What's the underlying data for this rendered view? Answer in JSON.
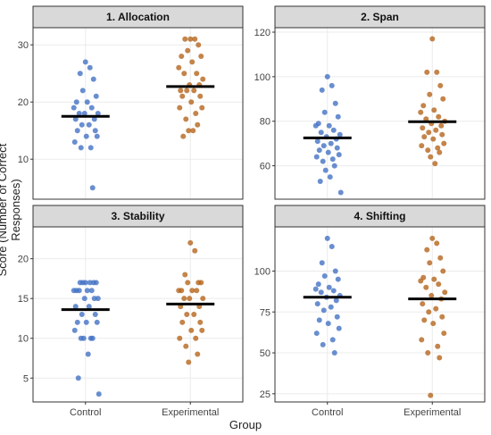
{
  "chart_data": {
    "type": "scatter",
    "ylabel": "Score (Number of Correct Responses)",
    "xlabel": "Group",
    "categories": [
      "Control",
      "Experimental"
    ],
    "colors": {
      "Control": "#4472c4",
      "Experimental": "#b5651d",
      "mean_line": "#000000",
      "strip_bg": "#d9d9d9",
      "grid": "#ebebeb"
    },
    "panels": [
      {
        "title": "1. Allocation",
        "ylim": [
          3,
          33
        ],
        "yticks": [
          10,
          20,
          30
        ],
        "means": {
          "Control": 17.5,
          "Experimental": 22.7
        },
        "series": [
          {
            "name": "Control",
            "values": [
              27,
              26,
              25,
              24,
              22,
              21,
              20,
              20,
              19,
              19,
              18,
              18,
              18,
              17,
              17,
              16,
              16,
              15,
              15,
              14,
              14,
              13,
              12,
              12,
              5
            ]
          },
          {
            "name": "Experimental",
            "values": [
              31,
              31,
              31,
              30,
              29,
              28,
              28,
              27,
              26,
              25,
              25,
              24,
              23,
              23,
              22,
              22,
              22,
              21,
              21,
              20,
              19,
              19,
              18,
              17,
              16,
              15,
              15,
              14
            ]
          }
        ]
      },
      {
        "title": "2. Span",
        "ylim": [
          45,
          122
        ],
        "yticks": [
          60,
          80,
          100,
          120
        ],
        "means": {
          "Control": 72.5,
          "Experimental": 79.8
        },
        "series": [
          {
            "name": "Control",
            "values": [
              100,
              96,
              94,
              88,
              84,
              82,
              79,
              78,
              78,
              76,
              75,
              74,
              73,
              72,
              71,
              70,
              69,
              68,
              67,
              66,
              65,
              64,
              63,
              62,
              60,
              58,
              55,
              53,
              48
            ]
          },
          {
            "name": "Experimental",
            "values": [
              117,
              102,
              102,
              96,
              92,
              90,
              87,
              85,
              84,
              82,
              81,
              80,
              79,
              78,
              77,
              76,
              75,
              74,
              73,
              72,
              70,
              69,
              68,
              67,
              66,
              64,
              61
            ]
          }
        ]
      },
      {
        "title": "3. Stability",
        "ylim": [
          2,
          24
        ],
        "yticks": [
          5,
          10,
          15,
          20
        ],
        "means": {
          "Control": 13.6,
          "Experimental": 14.3
        },
        "series": [
          {
            "name": "Control",
            "values": [
              17,
              17,
              17,
              17,
              17,
              17,
              16,
              16,
              16,
              16,
              16,
              15,
              15,
              15,
              14,
              14,
              13,
              13,
              12,
              12,
              12,
              11,
              10,
              10,
              10,
              10,
              8,
              5,
              3
            ]
          },
          {
            "name": "Experimental",
            "values": [
              22,
              21,
              18,
              17,
              17,
              17,
              16,
              16,
              16,
              16,
              15,
              15,
              15,
              14,
              14,
              13,
              13,
              12,
              12,
              11,
              11,
              10,
              10,
              9,
              8,
              7
            ]
          }
        ]
      },
      {
        "title": "4. Shifting",
        "ylim": [
          20,
          127
        ],
        "yticks": [
          25,
          50,
          75,
          100
        ],
        "means": {
          "Control": 84,
          "Experimental": 83
        },
        "series": [
          {
            "name": "Control",
            "values": [
              120,
              115,
              105,
              100,
              97,
              95,
              92,
              90,
              89,
              88,
              87,
              85,
              84,
              82,
              80,
              78,
              76,
              72,
              70,
              68,
              65,
              62,
              58,
              55,
              50
            ]
          },
          {
            "name": "Experimental",
            "values": [
              120,
              117,
              113,
              108,
              105,
              100,
              96,
              95,
              94,
              92,
              90,
              87,
              85,
              83,
              80,
              77,
              75,
              72,
              70,
              68,
              62,
              58,
              54,
              50,
              47,
              24
            ]
          }
        ]
      }
    ]
  }
}
